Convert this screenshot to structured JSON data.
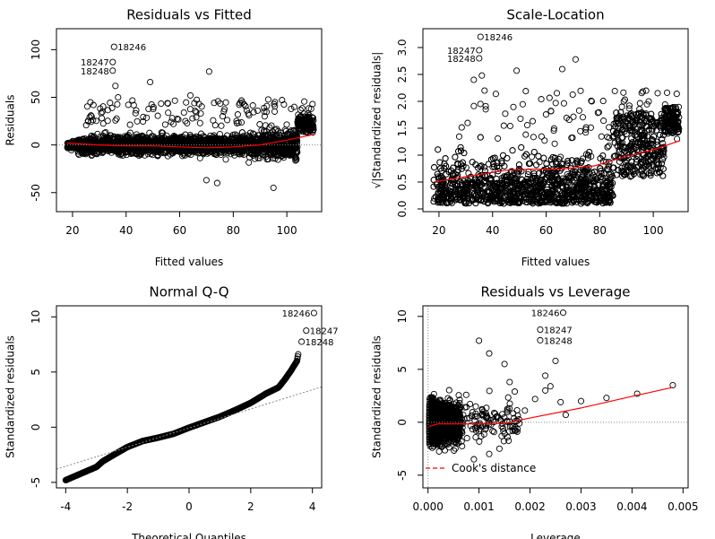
{
  "chart_data": [
    {
      "type": "scatter",
      "title": "Residuals vs Fitted",
      "xlabel": "Fitted values",
      "ylabel": "Residuals",
      "xlim": [
        14,
        113
      ],
      "ylim": [
        -70,
        122
      ],
      "xticks": [
        20,
        40,
        60,
        80,
        100
      ],
      "yticks": [
        -50,
        0,
        50,
        100
      ],
      "reference_line": {
        "y": 0,
        "style": "dotted",
        "color": "#888888"
      },
      "smoother": {
        "color": "#ff0000",
        "x": [
          18,
          30,
          40,
          50,
          60,
          70,
          80,
          90,
          100,
          110
        ],
        "y": [
          2,
          0,
          -1,
          -1,
          -2,
          -3,
          -2,
          0,
          5,
          11
        ]
      },
      "outliers": [
        {
          "label": "18246",
          "x": 35.5,
          "y": 103
        },
        {
          "label": "18247",
          "x": 35,
          "y": 87
        },
        {
          "label": "18248",
          "x": 35,
          "y": 78
        }
      ],
      "extra_points": [
        [
          71,
          77
        ],
        [
          49,
          66
        ],
        [
          64,
          52
        ],
        [
          36,
          62
        ],
        [
          37,
          50
        ],
        [
          95,
          -45
        ],
        [
          70,
          -37
        ],
        [
          74,
          -40
        ]
      ]
    },
    {
      "type": "scatter",
      "title": "Scale-Location",
      "xlabel": "Fitted values",
      "ylabel": "√|Standardized residuals|",
      "xlim": [
        14,
        113
      ],
      "ylim": [
        -0.05,
        3.35
      ],
      "xticks": [
        20,
        40,
        60,
        80,
        100
      ],
      "yticks": [
        0.0,
        0.5,
        1.0,
        1.5,
        2.0,
        2.5,
        3.0
      ],
      "ytick_labels": [
        "0.0",
        "0.5",
        "1.0",
        "1.5",
        "2.0",
        "2.5",
        "3.0"
      ],
      "smoother": {
        "color": "#ff0000",
        "x": [
          18,
          30,
          45,
          55,
          65,
          78,
          90,
          100,
          110
        ],
        "y": [
          0.5,
          0.6,
          0.72,
          0.74,
          0.74,
          0.8,
          0.98,
          1.1,
          1.27
        ]
      },
      "outliers": [
        {
          "label": "18246",
          "x": 35.5,
          "y": 3.2
        },
        {
          "label": "18247",
          "x": 35,
          "y": 2.95
        },
        {
          "label": "18248",
          "x": 35,
          "y": 2.8
        }
      ],
      "extra_points": [
        [
          71,
          2.78
        ],
        [
          66,
          2.6
        ],
        [
          49,
          2.57
        ],
        [
          36,
          2.48
        ],
        [
          33,
          2.4
        ],
        [
          37,
          2.2
        ],
        [
          89,
          2.0
        ],
        [
          77,
          2.0
        ]
      ]
    },
    {
      "type": "scatter",
      "title": "Normal Q-Q",
      "xlabel": "Theoretical Quantiles",
      "ylabel": "Standardized residuals",
      "xlim": [
        -4.3,
        4.3
      ],
      "ylim": [
        -5.5,
        11.0
      ],
      "xticks": [
        -4,
        -2,
        0,
        2,
        4
      ],
      "yticks": [
        -5,
        0,
        5,
        10
      ],
      "qq_line": {
        "color": "#888888",
        "style": "dotted",
        "x": [
          -4.3,
          4.3
        ],
        "y": [
          -3.8,
          3.65
        ]
      },
      "curve": [
        [
          -4.0,
          -4.8
        ],
        [
          -3.5,
          -4.2
        ],
        [
          -3.0,
          -3.6
        ],
        [
          -2.8,
          -3.1
        ],
        [
          -2.5,
          -2.6
        ],
        [
          -2.0,
          -1.8
        ],
        [
          -1.5,
          -1.25
        ],
        [
          -1.0,
          -0.95
        ],
        [
          -0.5,
          -0.6
        ],
        [
          0.0,
          -0.05
        ],
        [
          0.5,
          0.45
        ],
        [
          1.0,
          0.95
        ],
        [
          1.5,
          1.55
        ],
        [
          2.0,
          2.2
        ],
        [
          2.5,
          3.05
        ],
        [
          2.9,
          3.6
        ],
        [
          3.1,
          4.3
        ],
        [
          3.3,
          5.1
        ],
        [
          3.5,
          6.0
        ],
        [
          3.55,
          6.8
        ]
      ],
      "outliers": [
        {
          "label": "18246",
          "x": 4.05,
          "y": 10.35
        },
        {
          "label": "18247",
          "x": 3.8,
          "y": 8.75
        },
        {
          "label": "18248",
          "x": 3.65,
          "y": 7.75
        }
      ]
    },
    {
      "type": "scatter",
      "title": "Residuals vs Leverage",
      "xlabel": "Leverage",
      "ylabel": "Standardized residuals",
      "xlim": [
        -0.0001,
        0.0051
      ],
      "ylim": [
        -6.2,
        11.0
      ],
      "xticks": [
        0.0,
        0.001,
        0.002,
        0.003,
        0.004,
        0.005
      ],
      "xtick_labels": [
        "0.000",
        "0.001",
        "0.002",
        "0.003",
        "0.004",
        "0.005"
      ],
      "yticks": [
        -5,
        0,
        5,
        10
      ],
      "reference_lines": [
        {
          "y": 0,
          "style": "dotted",
          "color": "#888888"
        },
        {
          "x": 0,
          "style": "dotted",
          "color": "#888888"
        }
      ],
      "smoother": {
        "color": "#ff0000",
        "x": [
          2e-05,
          0.0002,
          0.0005,
          0.001,
          0.0015,
          0.002,
          0.003,
          0.004,
          0.0048
        ],
        "y": [
          -0.4,
          -0.15,
          -0.15,
          -0.15,
          -0.1,
          0.4,
          1.35,
          2.45,
          3.3
        ]
      },
      "outliers": [
        {
          "label": "18246",
          "x": 0.00265,
          "y": 10.35
        },
        {
          "label": "18247",
          "x": 0.0022,
          "y": 8.75
        },
        {
          "label": "18248",
          "x": 0.0022,
          "y": 7.75
        }
      ],
      "extra_points": [
        [
          0.0048,
          3.5
        ],
        [
          0.0041,
          2.7
        ],
        [
          0.0035,
          2.3
        ],
        [
          0.003,
          2.0
        ],
        [
          0.0026,
          1.9
        ],
        [
          0.0027,
          0.7
        ],
        [
          0.0023,
          4.4
        ],
        [
          0.0023,
          3.0
        ],
        [
          0.0021,
          2.2
        ],
        [
          0.0019,
          1.1
        ],
        [
          0.0024,
          3.4
        ],
        [
          0.0012,
          6.5
        ],
        [
          0.001,
          7.7
        ],
        [
          0.0015,
          5.5
        ],
        [
          0.0016,
          3.8
        ],
        [
          0.0014,
          -2.5
        ],
        [
          0.0012,
          -3.0
        ],
        [
          0.0009,
          -3.5
        ],
        [
          0.0017,
          2.9
        ],
        [
          0.0025,
          5.8
        ]
      ],
      "legend": {
        "position": "bottom-left",
        "entries": [
          {
            "label": "Cook's distance",
            "style": "dashed",
            "color": "#ff0000"
          }
        ]
      }
    }
  ]
}
